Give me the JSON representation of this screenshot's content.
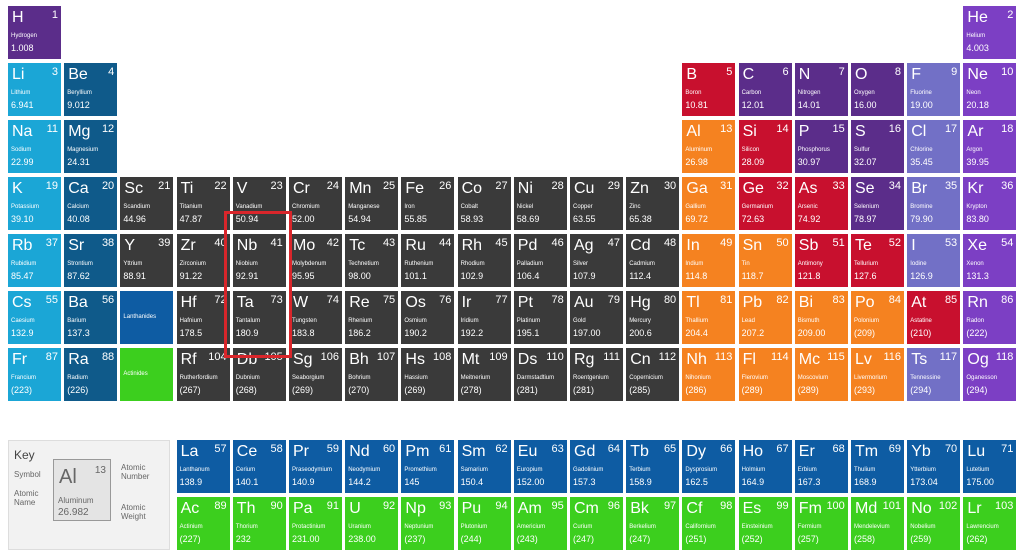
{
  "elements": [
    [
      "H",
      "1",
      "Hydrogen",
      "1.008"
    ],
    [
      "He",
      "2",
      "Helium",
      "4.003"
    ],
    [
      "Li",
      "3",
      "Lithium",
      "6.941"
    ],
    [
      "Be",
      "4",
      "Beryllium",
      "9.012"
    ],
    [
      "B",
      "5",
      "Boron",
      "10.81"
    ],
    [
      "C",
      "6",
      "Carbon",
      "12.01"
    ],
    [
      "N",
      "7",
      "Nitrogen",
      "14.01"
    ],
    [
      "O",
      "8",
      "Oxygen",
      "16.00"
    ],
    [
      "F",
      "9",
      "Fluorine",
      "19.00"
    ],
    [
      "Ne",
      "10",
      "Neon",
      "20.18"
    ],
    [
      "Na",
      "11",
      "Sodium",
      "22.99"
    ],
    [
      "Mg",
      "12",
      "Magnesium",
      "24.31"
    ],
    [
      "Al",
      "13",
      "Aluminum",
      "26.98"
    ],
    [
      "Si",
      "14",
      "Silicon",
      "28.09"
    ],
    [
      "P",
      "15",
      "Phosphorus",
      "30.97"
    ],
    [
      "S",
      "16",
      "Sulfur",
      "32.07"
    ],
    [
      "Cl",
      "17",
      "Chlorine",
      "35.45"
    ],
    [
      "Ar",
      "18",
      "Argon",
      "39.95"
    ],
    [
      "K",
      "19",
      "Potassium",
      "39.10"
    ],
    [
      "Ca",
      "20",
      "Calcium",
      "40.08"
    ],
    [
      "Sc",
      "21",
      "Scandium",
      "44.96"
    ],
    [
      "Ti",
      "22",
      "Titanium",
      "47.87"
    ],
    [
      "V",
      "23",
      "Vanadium",
      "50.94"
    ],
    [
      "Cr",
      "24",
      "Chromium",
      "52.00"
    ],
    [
      "Mn",
      "25",
      "Manganese",
      "54.94"
    ],
    [
      "Fe",
      "26",
      "Iron",
      "55.85"
    ],
    [
      "Co",
      "27",
      "Cobalt",
      "58.93"
    ],
    [
      "Ni",
      "28",
      "Nickel",
      "58.69"
    ],
    [
      "Cu",
      "29",
      "Copper",
      "63.55"
    ],
    [
      "Zn",
      "30",
      "Zinc",
      "65.38"
    ],
    [
      "Ga",
      "31",
      "Gallium",
      "69.72"
    ],
    [
      "Ge",
      "32",
      "Germanium",
      "72.63"
    ],
    [
      "As",
      "33",
      "Arsenic",
      "74.92"
    ],
    [
      "Se",
      "34",
      "Selenium",
      "78.97"
    ],
    [
      "Br",
      "35",
      "Bromine",
      "79.90"
    ],
    [
      "Kr",
      "36",
      "Krypton",
      "83.80"
    ],
    [
      "Rb",
      "37",
      "Rubidium",
      "85.47"
    ],
    [
      "Sr",
      "38",
      "Strontium",
      "87.62"
    ],
    [
      "Y",
      "39",
      "Yttrium",
      "88.91"
    ],
    [
      "Zr",
      "40",
      "Zirconium",
      "91.22"
    ],
    [
      "Nb",
      "41",
      "Niobium",
      "92.91"
    ],
    [
      "Mo",
      "42",
      "Molybdenum",
      "95.95"
    ],
    [
      "Tc",
      "43",
      "Technetium",
      "98.00"
    ],
    [
      "Ru",
      "44",
      "Ruthenium",
      "101.1"
    ],
    [
      "Rh",
      "45",
      "Rhodium",
      "102.9"
    ],
    [
      "Pd",
      "46",
      "Palladium",
      "106.4"
    ],
    [
      "Ag",
      "47",
      "Silver",
      "107.9"
    ],
    [
      "Cd",
      "48",
      "Cadmium",
      "112.4"
    ],
    [
      "In",
      "49",
      "Indium",
      "114.8"
    ],
    [
      "Sn",
      "50",
      "Tin",
      "118.7"
    ],
    [
      "Sb",
      "51",
      "Antimony",
      "121.8"
    ],
    [
      "Te",
      "52",
      "Tellurium",
      "127.6"
    ],
    [
      "I",
      "53",
      "Iodine",
      "126.9"
    ],
    [
      "Xe",
      "54",
      "Xenon",
      "131.3"
    ],
    [
      "Cs",
      "55",
      "Caesium",
      "132.9"
    ],
    [
      "Ba",
      "56",
      "Barium",
      "137.3"
    ],
    [
      "La",
      "57",
      "Lanthanum",
      "138.9"
    ],
    [
      "Ce",
      "58",
      "Cerium",
      "140.1"
    ],
    [
      "Pr",
      "59",
      "Praseodymium",
      "140.9"
    ],
    [
      "Nd",
      "60",
      "Neodymium",
      "144.2"
    ],
    [
      "Pm",
      "61",
      "Promethium",
      "145"
    ],
    [
      "Sm",
      "62",
      "Samarium",
      "150.4"
    ],
    [
      "Eu",
      "63",
      "Europium",
      "152.00"
    ],
    [
      "Gd",
      "64",
      "Gadolinium",
      "157.3"
    ],
    [
      "Tb",
      "65",
      "Terbium",
      "158.9"
    ],
    [
      "Dy",
      "66",
      "Dysprosium",
      "162.5"
    ],
    [
      "Ho",
      "67",
      "Holmium",
      "164.9"
    ],
    [
      "Er",
      "68",
      "Erbium",
      "167.3"
    ],
    [
      "Tm",
      "69",
      "Thulium",
      "168.9"
    ],
    [
      "Yb",
      "70",
      "Ytterbium",
      "173.04"
    ],
    [
      "Lu",
      "71",
      "Lutetium",
      "175.00"
    ],
    [
      "Hf",
      "72",
      "Hafnium",
      "178.5"
    ],
    [
      "Ta",
      "73",
      "Tantalum",
      "180.9"
    ],
    [
      "W",
      "74",
      "Tungsten",
      "183.8"
    ],
    [
      "Re",
      "75",
      "Rhenium",
      "186.2"
    ],
    [
      "Os",
      "76",
      "Osmium",
      "190.2"
    ],
    [
      "Ir",
      "77",
      "Iridium",
      "192.2"
    ],
    [
      "Pt",
      "78",
      "Platinum",
      "195.1"
    ],
    [
      "Au",
      "79",
      "Gold",
      "197.00"
    ],
    [
      "Hg",
      "80",
      "Mercury",
      "200.6"
    ],
    [
      "Tl",
      "81",
      "Thallium",
      "204.4"
    ],
    [
      "Pb",
      "82",
      "Lead",
      "207.2"
    ],
    [
      "Bi",
      "83",
      "Bismuth",
      "209.00"
    ],
    [
      "Po",
      "84",
      "Polonium",
      "(209)"
    ],
    [
      "At",
      "85",
      "Astatine",
      "(210)"
    ],
    [
      "Rn",
      "86",
      "Radon",
      "(222)"
    ],
    [
      "Fr",
      "87",
      "Francium",
      "(223)"
    ],
    [
      "Ra",
      "88",
      "Radium",
      "(226)"
    ],
    [
      "Ac",
      "89",
      "Actinium",
      "(227)"
    ],
    [
      "Th",
      "90",
      "Thorium",
      "232"
    ],
    [
      "Pa",
      "91",
      "Protactinium",
      "231.00"
    ],
    [
      "U",
      "92",
      "Uranium",
      "238.00"
    ],
    [
      "Np",
      "93",
      "Neptunium",
      "(237)"
    ],
    [
      "Pu",
      "94",
      "Plutonium",
      "(244)"
    ],
    [
      "Am",
      "95",
      "Americium",
      "(243)"
    ],
    [
      "Cm",
      "96",
      "Curium",
      "(247)"
    ],
    [
      "Bk",
      "97",
      "Berkelium",
      "(247)"
    ],
    [
      "Cf",
      "98",
      "Californium",
      "(251)"
    ],
    [
      "Es",
      "99",
      "Einsteinium",
      "(252)"
    ],
    [
      "Fm",
      "100",
      "Fermium",
      "(257)"
    ],
    [
      "Md",
      "101",
      "Mendelevium",
      "(258)"
    ],
    [
      "No",
      "102",
      "Nobelium",
      "(259)"
    ],
    [
      "Lr",
      "103",
      "Lawrencium",
      "(262)"
    ],
    [
      "Rf",
      "104",
      "Rutherfordium",
      "(267)"
    ],
    [
      "Db",
      "105",
      "Dubnium",
      "(268)"
    ],
    [
      "Sg",
      "106",
      "Seaborgium",
      "(269)"
    ],
    [
      "Bh",
      "107",
      "Bohrium",
      "(270)"
    ],
    [
      "Hs",
      "108",
      "Hassium",
      "(269)"
    ],
    [
      "Mt",
      "109",
      "Meitnerium",
      "(278)"
    ],
    [
      "Ds",
      "110",
      "Darmstadtium",
      "(281)"
    ],
    [
      "Rg",
      "111",
      "Roentgenium",
      "(281)"
    ],
    [
      "Cn",
      "112",
      "Copernicium",
      "(285)"
    ],
    [
      "Nh",
      "113",
      "Nihonium",
      "(286)"
    ],
    [
      "Fl",
      "114",
      "Flerovium",
      "(289)"
    ],
    [
      "Mc",
      "115",
      "Moscovium",
      "(289)"
    ],
    [
      "Lv",
      "116",
      "Livermorium",
      "(293)"
    ],
    [
      "Ts",
      "117",
      "Tennessine",
      "(294)"
    ],
    [
      "Og",
      "118",
      "Oganesson",
      "(294)"
    ]
  ],
  "groups": {
    "lanthanides": "Lanthanides",
    "actinides": "Actinides"
  },
  "key": {
    "title": "Key",
    "symbol_label": "Symbol",
    "atomic_number_label": "Atomic Number",
    "atomic_name_label": "Atomic Name",
    "atomic_weight_label": "Atomic Weight",
    "example": {
      "symbol": "Al",
      "number": "13",
      "name": "Aluminum",
      "mass": "26.982"
    }
  }
}
